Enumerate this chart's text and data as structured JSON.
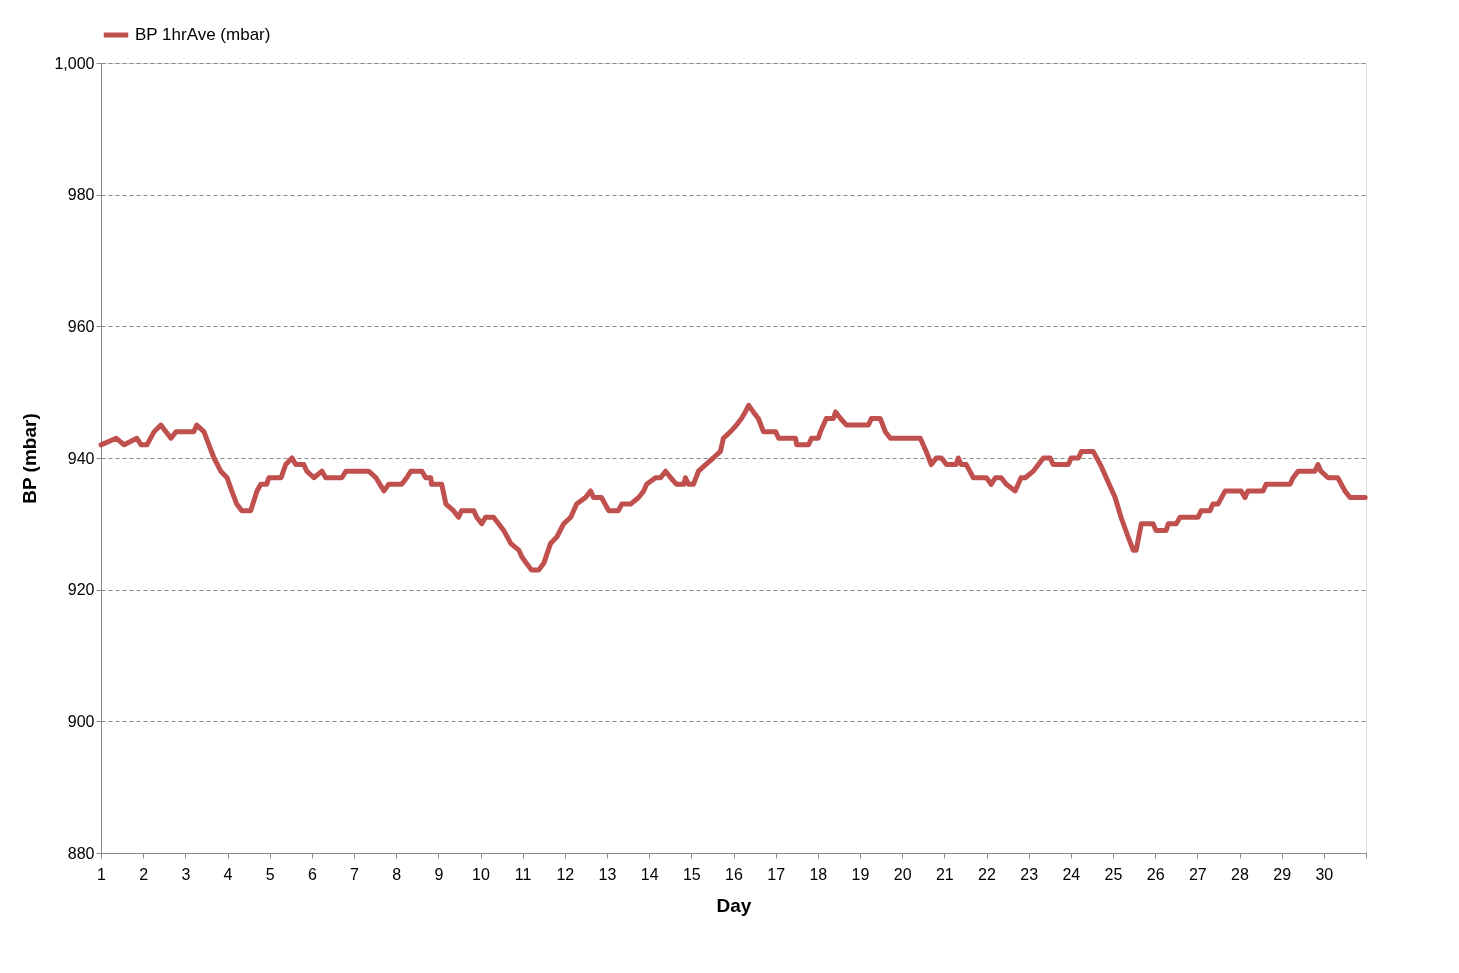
{
  "chart_data": {
    "type": "line",
    "xlabel": "Day",
    "ylabel": "BP (mbar)",
    "xlim": [
      1,
      31
    ],
    "xticks": [
      1,
      2,
      3,
      4,
      5,
      6,
      7,
      8,
      9,
      10,
      11,
      12,
      13,
      14,
      15,
      16,
      17,
      18,
      19,
      20,
      21,
      22,
      23,
      24,
      25,
      26,
      27,
      28,
      29,
      30,
      {
        "value": 31,
        "label": null
      }
    ],
    "ylim": [
      880,
      1000
    ],
    "yticks": [
      880,
      900,
      920,
      940,
      960,
      980,
      {
        "value": 1000,
        "label": "1,000"
      }
    ],
    "grid": "y",
    "legend": "top",
    "marker": "none",
    "line_style": "solid",
    "series": [
      {
        "name": "BP 1hrAve (mbar)",
        "color": "#c0504d",
        "x": [
          1.0,
          1.36,
          1.55,
          1.85,
          1.95,
          2.09,
          2.26,
          2.42,
          2.54,
          2.66,
          2.78,
          3.2,
          3.27,
          3.44,
          3.56,
          3.68,
          3.84,
          3.99,
          4.1,
          4.22,
          4.34,
          4.55,
          4.7,
          4.79,
          4.93,
          4.98,
          5.27,
          5.38,
          5.53,
          5.62,
          5.81,
          5.88,
          6.05,
          6.24,
          6.33,
          6.71,
          6.81,
          7.35,
          7.52,
          7.71,
          7.82,
          8.13,
          8.25,
          8.35,
          8.61,
          8.7,
          8.82,
          8.84,
          9.08,
          9.18,
          9.36,
          9.48,
          9.55,
          9.84,
          9.91,
          10.03,
          10.12,
          10.31,
          10.43,
          10.55,
          10.72,
          10.91,
          10.98,
          11.09,
          11.21,
          11.38,
          11.5,
          11.66,
          11.81,
          11.97,
          12.14,
          12.28,
          12.49,
          12.61,
          12.68,
          12.87,
          13.04,
          13.27,
          13.35,
          13.56,
          13.75,
          13.87,
          13.94,
          14.15,
          14.27,
          14.39,
          14.51,
          14.65,
          14.82,
          14.86,
          14.93,
          15.05,
          15.17,
          15.34,
          15.52,
          15.69,
          15.76,
          15.93,
          16.07,
          16.19,
          16.28,
          16.36,
          16.47,
          16.59,
          16.71,
          17.0,
          17.07,
          17.47,
          17.5,
          17.78,
          17.85,
          18.01,
          18.06,
          18.2,
          18.37,
          18.42,
          18.54,
          18.68,
          19.2,
          19.27,
          19.48,
          19.6,
          19.72,
          20.43,
          20.57,
          20.69,
          20.81,
          20.93,
          21.05,
          21.28,
          21.33,
          21.4,
          21.52,
          21.69,
          22.0,
          22.11,
          22.21,
          22.35,
          22.47,
          22.68,
          22.75,
          22.82,
          22.92,
          23.11,
          23.23,
          23.35,
          23.51,
          23.58,
          23.94,
          24.01,
          24.18,
          24.25,
          24.53,
          24.7,
          24.84,
          25.05,
          25.19,
          25.36,
          25.48,
          25.55,
          25.67,
          25.95,
          26.02,
          26.26,
          26.31,
          26.5,
          26.59,
          27.02,
          27.09,
          27.3,
          27.37,
          27.49,
          27.66,
          28.04,
          28.13,
          28.2,
          28.56,
          28.63,
          29.2,
          29.27,
          29.39,
          29.79,
          29.86,
          29.93,
          30.1,
          30.33,
          30.5,
          30.62,
          30.98
        ],
        "values": [
          942,
          943,
          942,
          943,
          942,
          942,
          944,
          945,
          944,
          943,
          944,
          944,
          945,
          944,
          942,
          940,
          938,
          937,
          935,
          933,
          932,
          932,
          935,
          936,
          936,
          937,
          937,
          939,
          940,
          939,
          939,
          938,
          937,
          938,
          937,
          937,
          938,
          938,
          937,
          935,
          936,
          936,
          937,
          938,
          938,
          937,
          937,
          936,
          936,
          933,
          932,
          931,
          932,
          932,
          931,
          930,
          931,
          931,
          930,
          929,
          927,
          926,
          925,
          924,
          923,
          923,
          924,
          927,
          928,
          930,
          931,
          933,
          934,
          935,
          934,
          934,
          932,
          932,
          933,
          933,
          934,
          935,
          936,
          937,
          937,
          938,
          937,
          936,
          936,
          937,
          936,
          936,
          938,
          939,
          940,
          941,
          943,
          944,
          945,
          946,
          947,
          948,
          947,
          946,
          944,
          944,
          943,
          943,
          942,
          942,
          943,
          943,
          944,
          946,
          946,
          947,
          946,
          945,
          945,
          946,
          946,
          944,
          943,
          943,
          941,
          939,
          940,
          940,
          939,
          939,
          940,
          939,
          939,
          937,
          937,
          936,
          937,
          937,
          936,
          935,
          936,
          937,
          937,
          938,
          939,
          940,
          940,
          939,
          939,
          940,
          940,
          941,
          941,
          939,
          937,
          934,
          931,
          928,
          926,
          926,
          930,
          930,
          929,
          929,
          930,
          930,
          931,
          931,
          932,
          932,
          933,
          933,
          935,
          935,
          934,
          935,
          935,
          936,
          936,
          937,
          938,
          938,
          939,
          938,
          937,
          937,
          935,
          934,
          934
        ]
      }
    ]
  }
}
